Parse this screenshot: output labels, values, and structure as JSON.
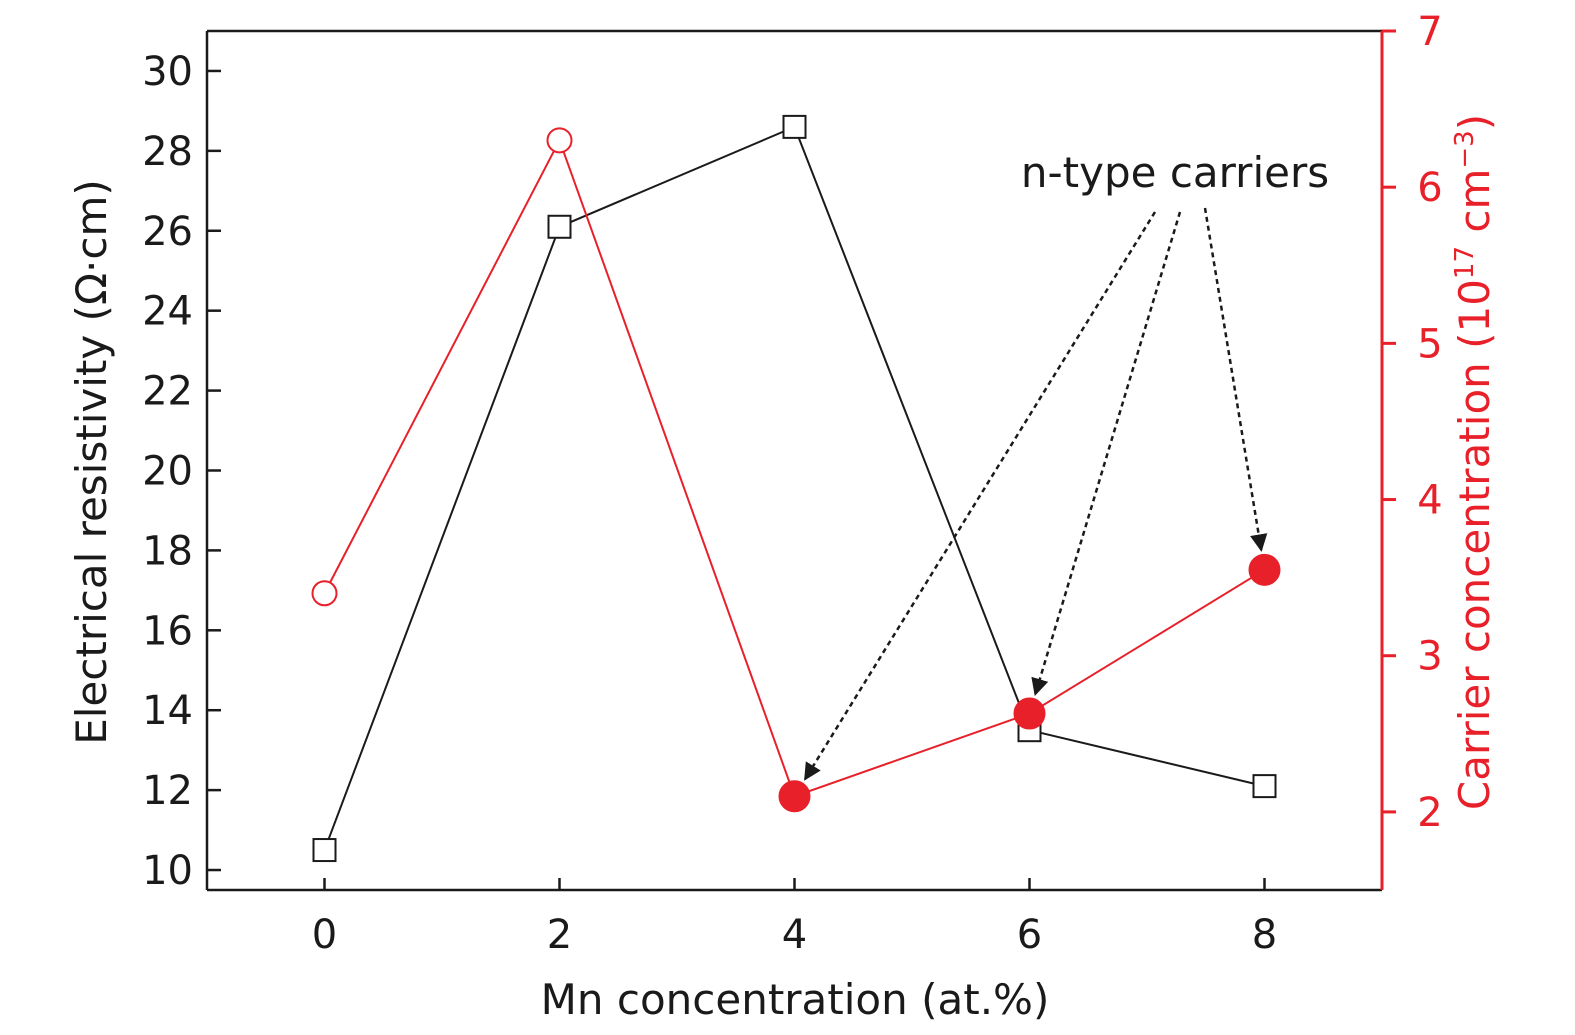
{
  "chart_data": {
    "type": "line",
    "x": [
      0,
      2,
      4,
      6,
      8
    ],
    "xlabel": "Mn concentration (at.%)",
    "xlim": [
      -1,
      9
    ],
    "xticks": [
      0,
      2,
      4,
      6,
      8
    ],
    "ylabel_left": "Electrical resistivity (Ω·cm)",
    "ylim_left": [
      9.5,
      31
    ],
    "yticks_left": [
      10,
      12,
      14,
      16,
      18,
      20,
      22,
      24,
      26,
      28,
      30
    ],
    "ylabel_right_main": "Carrier concentration (10",
    "ylabel_right_exp": "17",
    "ylabel_right_unit": " cm",
    "ylabel_right_unit_exp": "−3",
    "ylabel_right_close": ")",
    "ylim_right": [
      1.5,
      7
    ],
    "yticks_right": [
      2,
      3,
      4,
      5,
      6,
      7
    ],
    "grid": false,
    "series": [
      {
        "axis": "left",
        "color": "#1a1a1a",
        "marker": "square-open",
        "values": [
          10.5,
          26.1,
          28.6,
          13.5,
          12.1
        ]
      },
      {
        "axis": "right",
        "color": "#e8202a",
        "marker": "circle",
        "values": [
          3.4,
          6.3,
          2.1,
          2.63,
          3.55
        ],
        "filled": [
          false,
          false,
          true,
          true,
          true
        ]
      }
    ],
    "annotations": [
      {
        "text": "n-type carriers",
        "arrows_to": [
          {
            "x": 4,
            "y": 2.1
          },
          {
            "x": 6,
            "y": 2.63
          },
          {
            "x": 8,
            "y": 3.55
          }
        ]
      }
    ]
  },
  "colors": {
    "left_axis": "#1a1a1a",
    "right_axis": "#e8202a"
  }
}
